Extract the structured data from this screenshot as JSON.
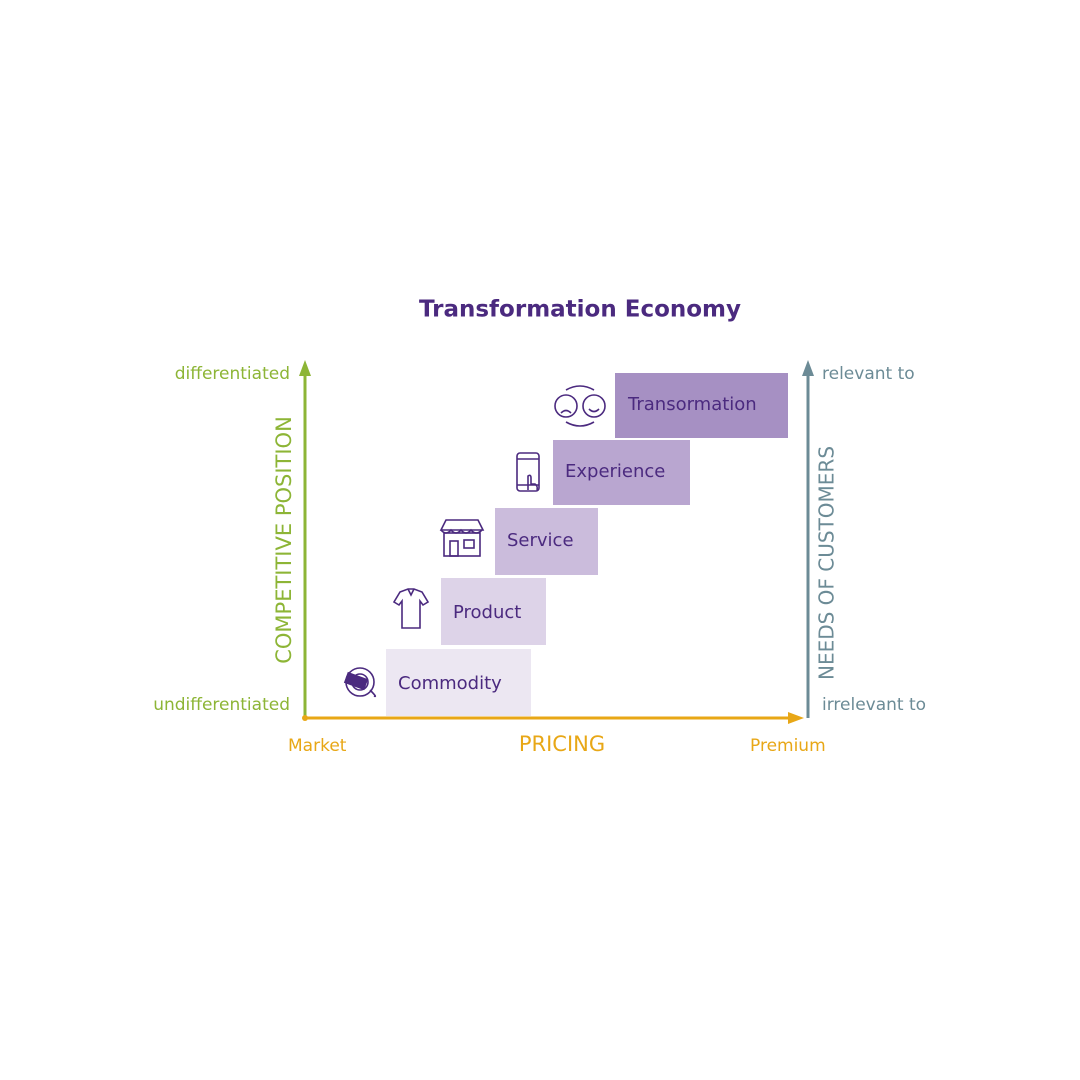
{
  "title": "Transformation Economy",
  "y_axis": {
    "label": "COMPETITIVE POSITION",
    "top": "differentiated",
    "bottom": "undifferentiated"
  },
  "x_axis": {
    "label": "PRICING",
    "left": "Market",
    "right": "Premium"
  },
  "y2_axis": {
    "label": "NEEDS OF CUSTOMERS",
    "top": "relevant to",
    "bottom": "irrelevant to"
  },
  "steps": [
    {
      "label": "Commodity"
    },
    {
      "label": "Product"
    },
    {
      "label": "Service"
    },
    {
      "label": "Experience"
    },
    {
      "label": "Transormation"
    }
  ]
}
